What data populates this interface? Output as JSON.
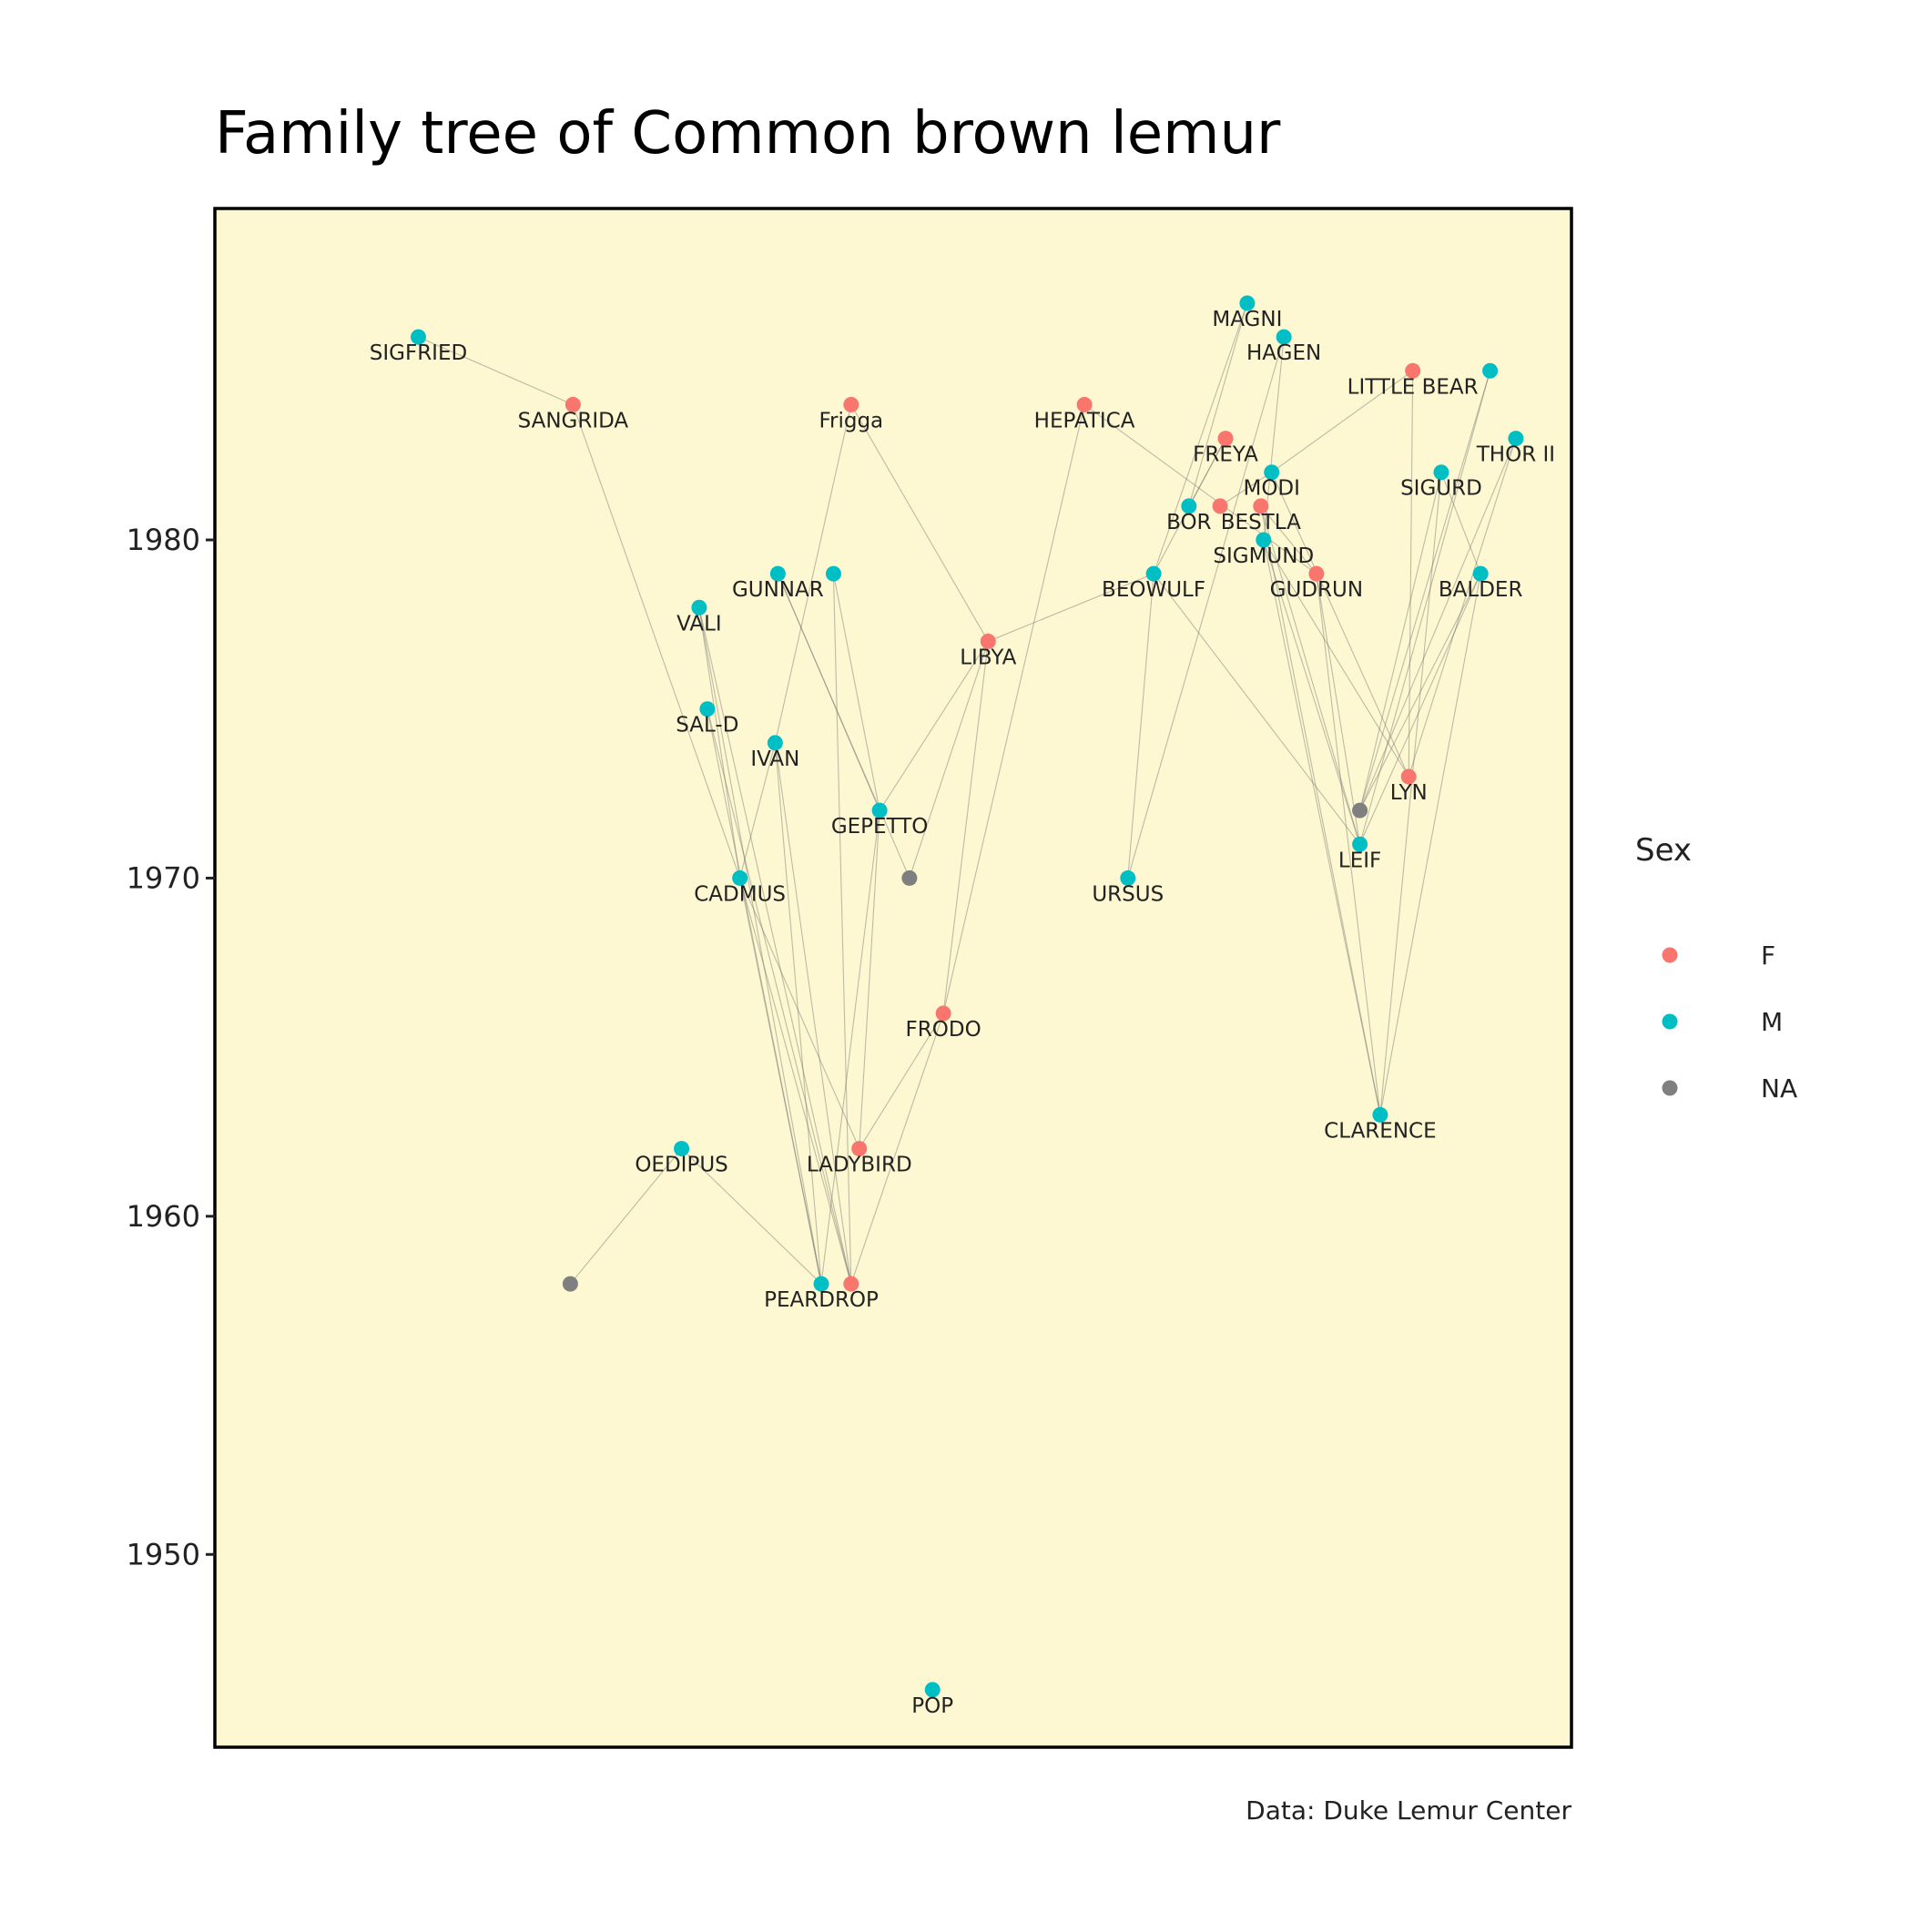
{
  "chart_data": {
    "type": "network",
    "title": "Family tree of Common brown lemur",
    "caption": "Data: Duke Lemur Center",
    "ylabel": "",
    "ylim": [
      1944.3,
      1989.8
    ],
    "xlim": [
      0,
      100
    ],
    "y_ticks": [
      {
        "value": 1950,
        "label": "1950"
      },
      {
        "value": 1960,
        "label": "1960"
      },
      {
        "value": 1970,
        "label": "1970"
      },
      {
        "value": 1980,
        "label": "1980"
      }
    ],
    "panel_color": "#fdf8d1",
    "sex_colors": {
      "F": "#f8766d",
      "M": "#00bfc4",
      "NA": "#7f7f7f"
    },
    "legend": {
      "title": "Sex",
      "position": "right",
      "entries": [
        {
          "key": "F",
          "label": "F"
        },
        {
          "key": "M",
          "label": "M"
        },
        {
          "key": "NA",
          "label": "NA"
        }
      ]
    },
    "nodes": [
      {
        "id": "sigfried",
        "label": "SIGFRIED",
        "x": 15,
        "y": 1986,
        "sex": "M"
      },
      {
        "id": "sangrida",
        "label": "SANGRIDA",
        "x": 26.4,
        "y": 1984,
        "sex": "F"
      },
      {
        "id": "frigga",
        "label": "Frigga",
        "x": 46.9,
        "y": 1984,
        "sex": "F"
      },
      {
        "id": "hepatica",
        "label": "HEPATICA",
        "x": 64.1,
        "y": 1984,
        "sex": "F"
      },
      {
        "id": "magni",
        "label": "MAGNI",
        "x": 76.1,
        "y": 1987,
        "sex": "M"
      },
      {
        "id": "hagen",
        "label": "HAGEN",
        "x": 78.8,
        "y": 1986,
        "sex": "M"
      },
      {
        "id": "little-bear",
        "label": "LITTLE BEAR",
        "x": 88.3,
        "y": 1985,
        "sex": "F"
      },
      {
        "id": "little-bear-m",
        "label": "",
        "x": 94,
        "y": 1985,
        "sex": "M"
      },
      {
        "id": "thor-ii",
        "label": "THOR II",
        "x": 95.9,
        "y": 1983,
        "sex": "M"
      },
      {
        "id": "freya",
        "label": "FREYA",
        "x": 74.5,
        "y": 1983,
        "sex": "F"
      },
      {
        "id": "modi",
        "label": "MODI",
        "x": 77.9,
        "y": 1982,
        "sex": "M"
      },
      {
        "id": "sigurd",
        "label": "SIGURD",
        "x": 90.4,
        "y": 1982,
        "sex": "M"
      },
      {
        "id": "bor",
        "label": "BOR",
        "x": 71.8,
        "y": 1981,
        "sex": "M"
      },
      {
        "id": "bor-f",
        "label": "",
        "x": 74.1,
        "y": 1981,
        "sex": "F"
      },
      {
        "id": "bestla",
        "label": "BESTLA",
        "x": 77.1,
        "y": 1981,
        "sex": "F"
      },
      {
        "id": "sigmund",
        "label": "SIGMUND",
        "x": 77.3,
        "y": 1980,
        "sex": "M"
      },
      {
        "id": "gunnar",
        "label": "GUNNAR",
        "x": 41.5,
        "y": 1979,
        "sex": "M"
      },
      {
        "id": "gunnar-2",
        "label": "",
        "x": 45.6,
        "y": 1979,
        "sex": "M"
      },
      {
        "id": "beowulf",
        "label": "BEOWULF",
        "x": 69.2,
        "y": 1979,
        "sex": "M"
      },
      {
        "id": "gudrun",
        "label": "GUDRUN",
        "x": 81.2,
        "y": 1979,
        "sex": "F"
      },
      {
        "id": "balder",
        "label": "BALDER",
        "x": 93.3,
        "y": 1979,
        "sex": "M"
      },
      {
        "id": "vali",
        "label": "VALI",
        "x": 35.7,
        "y": 1978,
        "sex": "M"
      },
      {
        "id": "libya",
        "label": "LIBYA",
        "x": 57,
        "y": 1977,
        "sex": "F"
      },
      {
        "id": "sal-d",
        "label": "SAL-D",
        "x": 36.3,
        "y": 1975,
        "sex": "M"
      },
      {
        "id": "ivan",
        "label": "IVAN",
        "x": 41.3,
        "y": 1974,
        "sex": "M"
      },
      {
        "id": "lyn",
        "label": "LYN",
        "x": 88,
        "y": 1973,
        "sex": "F"
      },
      {
        "id": "gepetto",
        "label": "GEPETTO",
        "x": 49,
        "y": 1972,
        "sex": "M"
      },
      {
        "id": "lyn-na",
        "label": "",
        "x": 84.4,
        "y": 1972,
        "sex": "NA"
      },
      {
        "id": "leif",
        "label": "LEIF",
        "x": 84.4,
        "y": 1971,
        "sex": "M"
      },
      {
        "id": "cadmus",
        "label": "CADMUS",
        "x": 38.7,
        "y": 1970,
        "sex": "M"
      },
      {
        "id": "gepetto-na",
        "label": "",
        "x": 51.2,
        "y": 1970,
        "sex": "NA"
      },
      {
        "id": "ursus",
        "label": "URSUS",
        "x": 67.3,
        "y": 1970,
        "sex": "M"
      },
      {
        "id": "frodo",
        "label": "FRODO",
        "x": 53.7,
        "y": 1966,
        "sex": "F"
      },
      {
        "id": "clarence",
        "label": "CLARENCE",
        "x": 85.9,
        "y": 1963,
        "sex": "M"
      },
      {
        "id": "oedipus",
        "label": "OEDIPUS",
        "x": 34.4,
        "y": 1962,
        "sex": "M"
      },
      {
        "id": "ladybird",
        "label": "LADYBIRD",
        "x": 47.5,
        "y": 1962,
        "sex": "F"
      },
      {
        "id": "peardrop",
        "label": "PEARDROP",
        "x": 44.7,
        "y": 1958,
        "sex": "M"
      },
      {
        "id": "peardrop-f",
        "label": "",
        "x": 46.9,
        "y": 1958,
        "sex": "F"
      },
      {
        "id": "oedipus-na",
        "label": "",
        "x": 26.2,
        "y": 1958,
        "sex": "NA"
      },
      {
        "id": "pop",
        "label": "POP",
        "x": 52.9,
        "y": 1946,
        "sex": "M"
      }
    ],
    "edges": [
      [
        "sigfried",
        "sangrida"
      ],
      [
        "sangrida",
        "cadmus"
      ],
      [
        "frigga",
        "libya"
      ],
      [
        "frigga",
        "ivan"
      ],
      [
        "hepatica",
        "frodo"
      ],
      [
        "hepatica",
        "gudrun"
      ],
      [
        "magni",
        "beowulf"
      ],
      [
        "magni",
        "bor"
      ],
      [
        "hagen",
        "sigmund"
      ],
      [
        "hagen",
        "ursus"
      ],
      [
        "little-bear",
        "modi"
      ],
      [
        "little-bear",
        "lyn"
      ],
      [
        "little-bear-m",
        "lyn-na"
      ],
      [
        "little-bear-m",
        "leif"
      ],
      [
        "thor-ii",
        "lyn"
      ],
      [
        "thor-ii",
        "lyn-na"
      ],
      [
        "freya",
        "bor"
      ],
      [
        "freya",
        "beowulf"
      ],
      [
        "modi",
        "bor-f"
      ],
      [
        "modi",
        "lyn"
      ],
      [
        "sigurd",
        "balder"
      ],
      [
        "sigurd",
        "lyn-na"
      ],
      [
        "sigurd",
        "clarence"
      ],
      [
        "bestla",
        "gudrun"
      ],
      [
        "bestla",
        "clarence"
      ],
      [
        "bestla",
        "leif"
      ],
      [
        "sigmund",
        "clarence"
      ],
      [
        "sigmund",
        "lyn"
      ],
      [
        "sigmund",
        "leif"
      ],
      [
        "gudrun",
        "clarence"
      ],
      [
        "gudrun",
        "leif"
      ],
      [
        "balder",
        "clarence"
      ],
      [
        "balder",
        "lyn-na"
      ],
      [
        "balder",
        "leif"
      ],
      [
        "beowulf",
        "libya"
      ],
      [
        "beowulf",
        "leif"
      ],
      [
        "beowulf",
        "ursus"
      ],
      [
        "libya",
        "gepetto"
      ],
      [
        "libya",
        "gepetto-na"
      ],
      [
        "gunnar",
        "gepetto"
      ],
      [
        "gunnar",
        "gepetto-na"
      ],
      [
        "gunnar-2",
        "gepetto"
      ],
      [
        "gunnar-2",
        "peardrop-f"
      ],
      [
        "vali",
        "cadmus"
      ],
      [
        "vali",
        "peardrop"
      ],
      [
        "vali",
        "peardrop-f"
      ],
      [
        "sal-d",
        "peardrop"
      ],
      [
        "sal-d",
        "peardrop-f"
      ],
      [
        "ivan",
        "peardrop"
      ],
      [
        "ivan",
        "peardrop-f"
      ],
      [
        "ivan",
        "cadmus"
      ],
      [
        "cadmus",
        "peardrop"
      ],
      [
        "cadmus",
        "peardrop-f"
      ],
      [
        "cadmus",
        "ladybird"
      ],
      [
        "gepetto",
        "ladybird"
      ],
      [
        "gepetto",
        "peardrop"
      ],
      [
        "frodo",
        "peardrop-f"
      ],
      [
        "frodo",
        "ladybird"
      ],
      [
        "libya",
        "frodo"
      ],
      [
        "oedipus",
        "peardrop"
      ],
      [
        "oedipus",
        "oedipus-na"
      ]
    ]
  }
}
